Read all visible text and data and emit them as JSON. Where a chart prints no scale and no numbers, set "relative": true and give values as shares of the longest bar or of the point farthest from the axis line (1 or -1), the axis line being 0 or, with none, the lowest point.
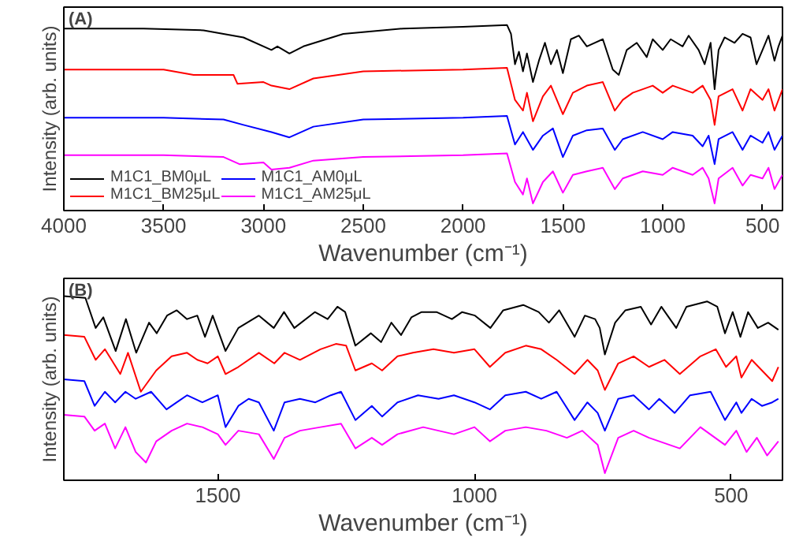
{
  "chart_data": [
    {
      "type": "line",
      "title": "(A)",
      "xlabel": "Wavenumber (cm⁻¹)",
      "ylabel": "Intensity (arb. units)",
      "relative": true,
      "xlim": [
        4000,
        400
      ],
      "xticks": [
        4000,
        3500,
        3000,
        2500,
        2000,
        1500,
        1000,
        500
      ],
      "grid": false,
      "legend": "bottom left",
      "line_style": "solid",
      "marker": "none",
      "x": [
        4000,
        3600,
        3300,
        3100,
        2960,
        2930,
        2870,
        2800,
        2600,
        2300,
        2000,
        1780,
        1760,
        1740,
        1720,
        1700,
        1680,
        1650,
        1620,
        1590,
        1560,
        1530,
        1500,
        1460,
        1420,
        1380,
        1300,
        1250,
        1220,
        1180,
        1130,
        1080,
        1050,
        1000,
        960,
        900,
        870,
        820,
        790,
        760,
        740,
        720,
        690,
        640,
        600,
        560,
        530,
        500,
        470,
        440,
        420,
        400
      ],
      "series": [
        {
          "name": "M1C1_BM0μL",
          "color": "#000000",
          "values": [
            0.98,
            0.98,
            0.97,
            0.93,
            0.86,
            0.88,
            0.84,
            0.88,
            0.95,
            0.98,
            0.99,
            1.0,
            0.95,
            0.78,
            0.85,
            0.74,
            0.84,
            0.68,
            0.8,
            0.9,
            0.78,
            0.86,
            0.73,
            0.92,
            0.94,
            0.88,
            0.92,
            0.75,
            0.72,
            0.86,
            0.9,
            0.82,
            0.92,
            0.86,
            0.92,
            0.88,
            0.94,
            0.86,
            0.78,
            0.9,
            0.64,
            0.86,
            0.93,
            0.9,
            0.95,
            0.93,
            0.78,
            0.86,
            0.94,
            0.8,
            0.88,
            0.94
          ]
        },
        {
          "name": "M1C1_BM25μL",
          "color": "#ff0000",
          "x": [
            4000,
            3500,
            3350,
            3150,
            3130,
            3000,
            2960,
            2870,
            2750,
            2500,
            2000,
            1780,
            1740,
            1700,
            1680,
            1650,
            1600,
            1560,
            1500,
            1450,
            1380,
            1300,
            1240,
            1200,
            1150,
            1050,
            1000,
            950,
            850,
            800,
            760,
            740,
            720,
            650,
            600,
            560,
            500,
            470,
            440,
            400
          ],
          "values": [
            0.75,
            0.75,
            0.72,
            0.72,
            0.67,
            0.68,
            0.66,
            0.64,
            0.7,
            0.74,
            0.75,
            0.76,
            0.58,
            0.52,
            0.62,
            0.46,
            0.6,
            0.66,
            0.5,
            0.62,
            0.66,
            0.68,
            0.52,
            0.58,
            0.62,
            0.66,
            0.62,
            0.66,
            0.62,
            0.66,
            0.58,
            0.44,
            0.6,
            0.64,
            0.52,
            0.64,
            0.58,
            0.64,
            0.52,
            0.64
          ]
        },
        {
          "name": "M1C1_AM0μL",
          "color": "#0000ff",
          "x": [
            4000,
            3500,
            3200,
            3100,
            2960,
            2870,
            2750,
            2500,
            2000,
            1780,
            1740,
            1700,
            1650,
            1600,
            1550,
            1500,
            1450,
            1380,
            1300,
            1240,
            1200,
            1100,
            1000,
            950,
            850,
            800,
            770,
            740,
            720,
            650,
            600,
            560,
            500,
            470,
            440,
            400
          ],
          "values": [
            0.48,
            0.48,
            0.47,
            0.44,
            0.4,
            0.37,
            0.43,
            0.47,
            0.48,
            0.49,
            0.33,
            0.4,
            0.3,
            0.38,
            0.42,
            0.26,
            0.38,
            0.41,
            0.42,
            0.3,
            0.36,
            0.4,
            0.36,
            0.4,
            0.38,
            0.32,
            0.38,
            0.22,
            0.36,
            0.4,
            0.3,
            0.38,
            0.34,
            0.4,
            0.3,
            0.38
          ]
        },
        {
          "name": "M1C1_AM25μL",
          "color": "#ff00ff",
          "x": [
            4000,
            3500,
            3200,
            3120,
            3000,
            2960,
            2870,
            2750,
            2500,
            2000,
            1780,
            1740,
            1700,
            1680,
            1650,
            1600,
            1550,
            1500,
            1450,
            1380,
            1300,
            1240,
            1200,
            1100,
            1000,
            950,
            850,
            800,
            770,
            740,
            720,
            650,
            600,
            560,
            500,
            470,
            440,
            400
          ],
          "values": [
            0.27,
            0.27,
            0.26,
            0.22,
            0.23,
            0.19,
            0.2,
            0.24,
            0.26,
            0.27,
            0.28,
            0.12,
            0.05,
            0.14,
            0.0,
            0.12,
            0.18,
            0.06,
            0.16,
            0.18,
            0.2,
            0.08,
            0.14,
            0.18,
            0.16,
            0.2,
            0.16,
            0.2,
            0.14,
            0.0,
            0.14,
            0.2,
            0.1,
            0.16,
            0.14,
            0.2,
            0.08,
            0.16
          ]
        }
      ]
    },
    {
      "type": "line",
      "title": "(B)",
      "xlabel": "Wavenumber (cm⁻¹)",
      "ylabel": "Intensity (arb. units)",
      "relative": true,
      "xlim": [
        1800,
        400
      ],
      "xticks": [
        1500,
        1000,
        500
      ],
      "grid": false,
      "line_style": "solid",
      "marker": "none",
      "x": [
        1800,
        1758,
        1738,
        1723,
        1699,
        1679,
        1659,
        1634,
        1619,
        1599,
        1580,
        1560,
        1540,
        1525,
        1510,
        1485,
        1460,
        1420,
        1391,
        1371,
        1351,
        1311,
        1286,
        1267,
        1252,
        1232,
        1202,
        1182,
        1162,
        1143,
        1123,
        1103,
        1074,
        1044,
        1024,
        999,
        969,
        944,
        905,
        875,
        855,
        835,
        805,
        785,
        765,
        756,
        746,
        726,
        706,
        676,
        656,
        636,
        607,
        587,
        547,
        527,
        512,
        497,
        482,
        467,
        448,
        428,
        408
      ],
      "series": [
        {
          "color": "#000000",
          "values": [
            1.0,
            0.99,
            0.82,
            0.88,
            0.69,
            0.87,
            0.68,
            0.85,
            0.79,
            0.89,
            0.92,
            0.87,
            0.89,
            0.77,
            0.89,
            0.69,
            0.82,
            0.89,
            0.82,
            0.91,
            0.82,
            0.91,
            0.87,
            0.94,
            0.91,
            0.72,
            0.79,
            0.74,
            0.85,
            0.78,
            0.88,
            0.91,
            0.91,
            0.87,
            0.91,
            0.89,
            0.82,
            0.92,
            0.95,
            0.91,
            0.85,
            0.92,
            0.77,
            0.89,
            0.87,
            0.82,
            0.67,
            0.85,
            0.92,
            0.94,
            0.84,
            0.94,
            0.82,
            0.94,
            0.97,
            0.94,
            0.79,
            0.91,
            0.77,
            0.91,
            0.82,
            0.85,
            0.81
          ]
        },
        {
          "color": "#ff0000",
          "x": [
            1800,
            1760,
            1738,
            1720,
            1690,
            1675,
            1650,
            1620,
            1590,
            1560,
            1540,
            1520,
            1500,
            1485,
            1460,
            1420,
            1390,
            1370,
            1340,
            1300,
            1270,
            1250,
            1232,
            1200,
            1180,
            1150,
            1120,
            1080,
            1040,
            1000,
            970,
            940,
            900,
            870,
            840,
            805,
            780,
            760,
            746,
            720,
            690,
            660,
            630,
            600,
            560,
            530,
            510,
            490,
            480,
            460,
            440,
            420,
            408
          ],
          "values": [
            0.78,
            0.77,
            0.64,
            0.7,
            0.56,
            0.68,
            0.46,
            0.58,
            0.66,
            0.68,
            0.64,
            0.62,
            0.66,
            0.56,
            0.6,
            0.68,
            0.62,
            0.68,
            0.64,
            0.7,
            0.73,
            0.72,
            0.58,
            0.62,
            0.58,
            0.66,
            0.68,
            0.7,
            0.68,
            0.7,
            0.6,
            0.68,
            0.72,
            0.7,
            0.64,
            0.56,
            0.64,
            0.58,
            0.47,
            0.62,
            0.66,
            0.6,
            0.64,
            0.56,
            0.66,
            0.7,
            0.6,
            0.66,
            0.54,
            0.64,
            0.58,
            0.52,
            0.6
          ]
        },
        {
          "color": "#0000ff",
          "x": [
            1800,
            1760,
            1740,
            1720,
            1700,
            1680,
            1660,
            1630,
            1600,
            1580,
            1560,
            1530,
            1500,
            1485,
            1460,
            1440,
            1420,
            1391,
            1370,
            1340,
            1310,
            1280,
            1260,
            1232,
            1200,
            1180,
            1150,
            1110,
            1070,
            1040,
            1000,
            970,
            940,
            900,
            870,
            840,
            805,
            780,
            760,
            746,
            720,
            690,
            660,
            640,
            610,
            580,
            540,
            512,
            490,
            480,
            460,
            440,
            420,
            408
          ],
          "values": [
            0.53,
            0.52,
            0.38,
            0.46,
            0.4,
            0.46,
            0.42,
            0.46,
            0.36,
            0.4,
            0.44,
            0.4,
            0.44,
            0.26,
            0.38,
            0.42,
            0.4,
            0.24,
            0.4,
            0.42,
            0.4,
            0.44,
            0.46,
            0.3,
            0.38,
            0.32,
            0.4,
            0.44,
            0.42,
            0.44,
            0.4,
            0.36,
            0.44,
            0.46,
            0.42,
            0.46,
            0.3,
            0.4,
            0.34,
            0.24,
            0.42,
            0.44,
            0.36,
            0.42,
            0.34,
            0.44,
            0.46,
            0.3,
            0.4,
            0.34,
            0.42,
            0.38,
            0.4,
            0.42
          ]
        },
        {
          "color": "#ff00ff",
          "x": [
            1800,
            1760,
            1740,
            1720,
            1700,
            1680,
            1660,
            1640,
            1620,
            1590,
            1560,
            1530,
            1500,
            1485,
            1460,
            1420,
            1391,
            1370,
            1340,
            1300,
            1260,
            1232,
            1200,
            1180,
            1150,
            1100,
            1040,
            1000,
            970,
            940,
            900,
            860,
            820,
            790,
            760,
            746,
            720,
            690,
            660,
            600,
            560,
            512,
            490,
            470,
            450,
            430,
            408
          ],
          "values": [
            0.33,
            0.32,
            0.24,
            0.28,
            0.14,
            0.26,
            0.12,
            0.06,
            0.18,
            0.24,
            0.28,
            0.26,
            0.22,
            0.16,
            0.24,
            0.22,
            0.08,
            0.2,
            0.24,
            0.26,
            0.28,
            0.14,
            0.2,
            0.16,
            0.22,
            0.26,
            0.22,
            0.26,
            0.18,
            0.24,
            0.26,
            0.24,
            0.2,
            0.24,
            0.16,
            0.0,
            0.2,
            0.24,
            0.2,
            0.14,
            0.26,
            0.16,
            0.24,
            0.12,
            0.2,
            0.1,
            0.18
          ]
        }
      ]
    }
  ]
}
